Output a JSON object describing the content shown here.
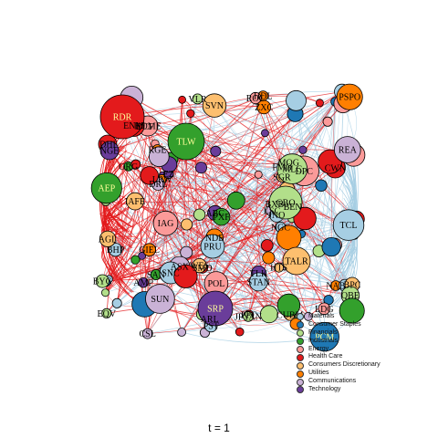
{
  "diagram": {
    "type": "network",
    "caption": "t = 1",
    "node_labels": [
      "RDR",
      "HOME",
      "DHI",
      "TLW",
      "NGE",
      "BYG",
      "MLC",
      "PSPO",
      "LRW",
      "PXF",
      "RGE",
      "JPYAN",
      "IAFE",
      "AEP",
      "ROC",
      "SGR",
      "TLK",
      "GBO",
      "JNO",
      "SAN",
      "ASX",
      "SNC",
      "HDL",
      "VLR",
      "DPC",
      "LDG",
      "PPC",
      "EQV",
      "BPC",
      "TALR",
      "DCF",
      "PRU",
      "BHP",
      "SRP",
      "NDE",
      "ZXC",
      "STAN",
      "CUBM",
      "PST",
      "EZ",
      "SMD",
      "POL",
      "GIEL",
      "ARL",
      "ENM",
      "DRL",
      "LSC",
      "NGC",
      "PCM",
      "SVN",
      "BEN",
      "ABC",
      "HTS",
      "REA",
      "CSL",
      "BXB",
      "FMG",
      "IAG",
      "QBE",
      "TCL",
      "ORG",
      "WES",
      "AGL",
      "NAB",
      "MQG",
      "AMP",
      "CWN",
      "SUN"
    ]
  },
  "legend": {
    "items": [
      {
        "label": "Materials",
        "color": "#a6cee3"
      },
      {
        "label": "Consumer Staples",
        "color": "#1f78b4"
      },
      {
        "label": "Financials",
        "color": "#b2df8a"
      },
      {
        "label": "Industrials",
        "color": "#33a02c"
      },
      {
        "label": "Energy",
        "color": "#fb9a99"
      },
      {
        "label": "Health Care",
        "color": "#e31a1c"
      },
      {
        "label": "Consumers Discretionary",
        "color": "#fdbf6f"
      },
      {
        "label": "Utilities",
        "color": "#ff7f00"
      },
      {
        "label": "Communications",
        "color": "#cab2d6"
      },
      {
        "label": "Technology",
        "color": "#6a3d9a"
      }
    ]
  },
  "edge_colors": {
    "negative": "#e31a1c",
    "positive": "#a6cee3"
  }
}
